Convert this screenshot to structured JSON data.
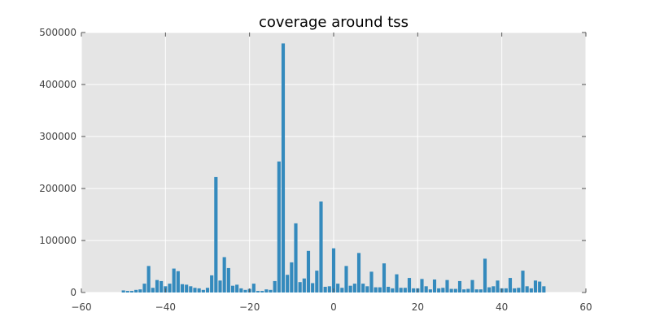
{
  "chart_data": {
    "type": "bar",
    "title": "coverage around tss",
    "xlabel": "",
    "ylabel": "",
    "xlim": [
      -60,
      60
    ],
    "ylim": [
      0,
      500000
    ],
    "grid": true,
    "x_ticks": [
      "−60",
      "−40",
      "−20",
      "0",
      "20",
      "40",
      "60"
    ],
    "x_tick_values": [
      -60,
      -40,
      -20,
      0,
      20,
      40,
      60
    ],
    "y_ticks": [
      "0",
      "100000",
      "200000",
      "300000",
      "400000",
      "500000"
    ],
    "y_tick_values": [
      0,
      100000,
      200000,
      300000,
      400000,
      500000
    ],
    "bar_color": "#348abd",
    "x": [
      -50,
      -49,
      -48,
      -47,
      -46,
      -45,
      -44,
      -43,
      -42,
      -41,
      -40,
      -39,
      -38,
      -37,
      -36,
      -35,
      -34,
      -33,
      -32,
      -31,
      -30,
      -29,
      -28,
      -27,
      -26,
      -25,
      -24,
      -23,
      -22,
      -21,
      -20,
      -19,
      -18,
      -17,
      -16,
      -15,
      -14,
      -13,
      -12,
      -11,
      -10,
      -9,
      -8,
      -7,
      -6,
      -5,
      -4,
      -3,
      -2,
      -1,
      0,
      1,
      2,
      3,
      4,
      5,
      6,
      7,
      8,
      9,
      10,
      11,
      12,
      13,
      14,
      15,
      16,
      17,
      18,
      19,
      20,
      21,
      22,
      23,
      24,
      25,
      26,
      27,
      28,
      29,
      30,
      31,
      32,
      33,
      34,
      35,
      36,
      37,
      38,
      39,
      40,
      41,
      42,
      43,
      44,
      45,
      46,
      47,
      48,
      49,
      50
    ],
    "values": [
      4000,
      3000,
      3000,
      5000,
      6000,
      17000,
      51000,
      9000,
      24000,
      22000,
      12000,
      17000,
      46000,
      41000,
      16000,
      15000,
      12000,
      9000,
      8000,
      5000,
      9000,
      33000,
      222000,
      23000,
      68000,
      47000,
      13000,
      15000,
      8000,
      5000,
      7000,
      17000,
      3000,
      3000,
      6000,
      5000,
      22000,
      252000,
      479000,
      34000,
      58000,
      133000,
      20000,
      27000,
      80000,
      18000,
      42000,
      175000,
      11000,
      12000,
      85000,
      17000,
      9000,
      51000,
      13000,
      17000,
      76000,
      17000,
      12000,
      40000,
      10000,
      10000,
      56000,
      11000,
      8000,
      35000,
      9000,
      9000,
      28000,
      8000,
      8000,
      26000,
      12000,
      6000,
      25000,
      8000,
      9000,
      24000,
      7000,
      7000,
      22000,
      6000,
      7000,
      24000,
      6000,
      6000,
      65000,
      10000,
      12000,
      23000,
      8000,
      8000,
      28000,
      8000,
      9000,
      42000,
      12000,
      8000,
      23000,
      21000,
      12000
    ]
  }
}
